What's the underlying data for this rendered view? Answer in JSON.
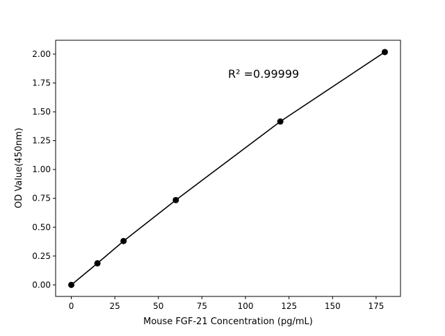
{
  "chart_data": {
    "type": "line",
    "title": "",
    "xlabel": "Mouse FGF-21 Concentration (pg/mL)",
    "ylabel": "OD Value(450nm)",
    "xlim": [
      -9,
      189
    ],
    "ylim": [
      -0.1,
      2.12
    ],
    "xticks": [
      0,
      25,
      50,
      75,
      100,
      125,
      150,
      175
    ],
    "xtick_labels": [
      "0",
      "25",
      "50",
      "75",
      "100",
      "125",
      "150",
      "175"
    ],
    "yticks": [
      0,
      0.25,
      0.5,
      0.75,
      1.0,
      1.25,
      1.5,
      1.75,
      2.0
    ],
    "ytick_labels": [
      "0.00",
      "0.25",
      "0.50",
      "0.75",
      "1.00",
      "1.25",
      "1.50",
      "1.75",
      "2.00"
    ],
    "grid": false,
    "series": [
      {
        "x": [
          0,
          15,
          30,
          60,
          120,
          180
        ],
        "y": [
          0.0,
          0.187,
          0.38,
          0.735,
          1.416,
          2.018
        ],
        "color": "#000000",
        "marker": "circle"
      }
    ],
    "annotation": {
      "text": "R² =0.99999",
      "x": 90,
      "y": 1.83
    }
  }
}
